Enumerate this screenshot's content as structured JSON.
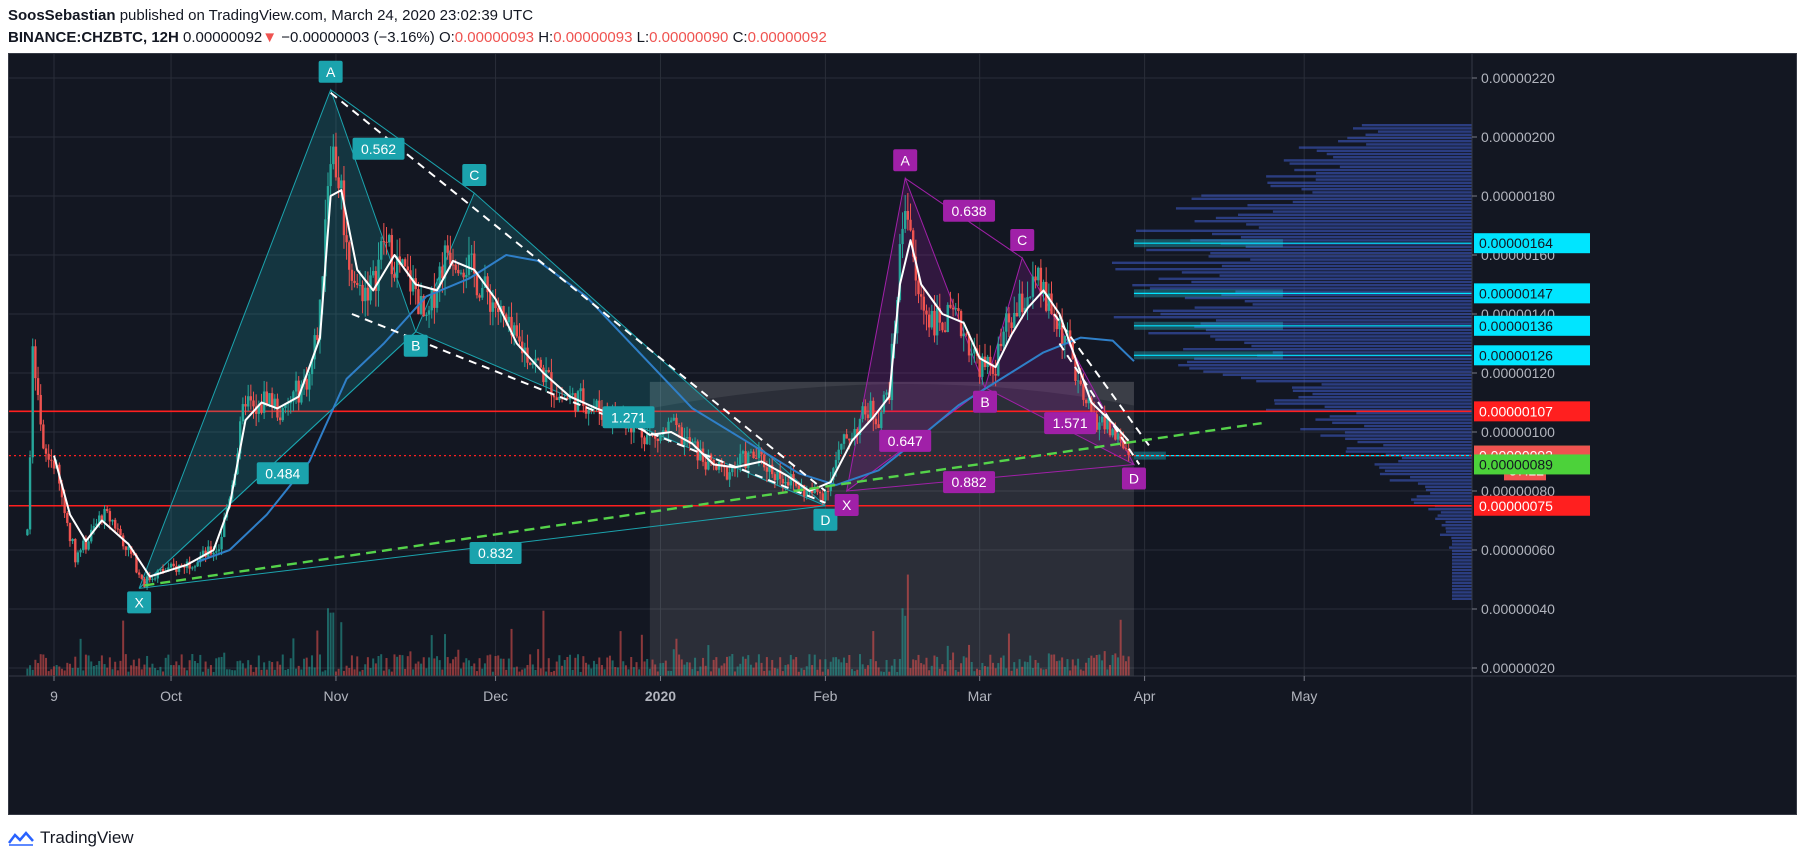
{
  "header": {
    "author": "SoosSebastian",
    "published": "published on TradingView.com, March 24, 2020 23:02:39 UTC",
    "symbol": "BINANCE:CHZBTC, 12H",
    "last": "0.00000092",
    "arrow": "▼",
    "change": "−0.00000003 (−3.16%)",
    "o_label": "O:",
    "o": "0.00000093",
    "h_label": "H:",
    "h": "0.00000093",
    "l_label": "L:",
    "l": "0.00000090",
    "c_label": "C:",
    "c": "0.00000092"
  },
  "footer": {
    "brand": "TradingView"
  },
  "colors": {
    "bg": "#131722",
    "grid": "#2a2e39",
    "up": "#26a69a",
    "down": "#ef5350",
    "teal": "#1ba3ad",
    "magenta": "#a020a8",
    "ma_fast": "#ffffff",
    "ma_slow": "#2f7fc8",
    "trend": "#55d34a",
    "support_red": "#ff1f1f",
    "profile": "#3f5ccd"
  },
  "chart_data": {
    "type": "candlestick",
    "x_ticks": [
      {
        "t": 0,
        "label": "9"
      },
      {
        "t": 22,
        "label": "Oct"
      },
      {
        "t": 53,
        "label": "Nov"
      },
      {
        "t": 83,
        "label": "Dec"
      },
      {
        "t": 114,
        "label": "2020"
      },
      {
        "t": 145,
        "label": "Feb"
      },
      {
        "t": 174,
        "label": "Mar"
      },
      {
        "t": 205,
        "label": "Apr"
      },
      {
        "t": 235,
        "label": "May"
      }
    ],
    "y_ticks": [
      "0.00000020",
      "0.00000040",
      "0.00000060",
      "0.00000080",
      "0.00000100",
      "0.00000120",
      "0.00000140",
      "0.00000160",
      "0.00000180",
      "0.00000200",
      "0.00000220"
    ],
    "ylim": [
      2e-07,
      2.29e-06
    ],
    "price_path": [
      [
        -5,
        6.5e-07
      ],
      [
        -4,
        1.25e-06
      ],
      [
        -2,
        9.2e-07
      ],
      [
        0,
        9e-07
      ],
      [
        2,
        7.3e-07
      ],
      [
        4,
        5.8e-07
      ],
      [
        6,
        6.2e-07
      ],
      [
        9,
        7.2e-07
      ],
      [
        11,
        7e-07
      ],
      [
        14,
        6e-07
      ],
      [
        17,
        4.9e-07
      ],
      [
        19,
        5.2e-07
      ],
      [
        23,
        5.4e-07
      ],
      [
        27,
        5.7e-07
      ],
      [
        31,
        6.1e-07
      ],
      [
        34,
        8.8e-07
      ],
      [
        36,
        1.12e-06
      ],
      [
        38,
        1.05e-06
      ],
      [
        40,
        1.13e-06
      ],
      [
        43,
        1.05e-06
      ],
      [
        45,
        1.12e-06
      ],
      [
        48,
        1.19e-06
      ],
      [
        50,
        1.4e-06
      ],
      [
        51,
        1.75e-06
      ],
      [
        52,
        1.98e-06
      ],
      [
        53,
        1.9e-06
      ],
      [
        54,
        1.82e-06
      ],
      [
        55,
        1.62e-06
      ],
      [
        57,
        1.48e-06
      ],
      [
        60,
        1.5e-06
      ],
      [
        62,
        1.65e-06
      ],
      [
        64,
        1.58e-06
      ],
      [
        66,
        1.53e-06
      ],
      [
        68,
        1.48e-06
      ],
      [
        70,
        1.35e-06
      ],
      [
        72,
        1.52e-06
      ],
      [
        74,
        1.62e-06
      ],
      [
        76,
        1.6e-06
      ],
      [
        78,
        1.56e-06
      ],
      [
        80,
        1.5e-06
      ],
      [
        83,
        1.43e-06
      ],
      [
        86,
        1.32e-06
      ],
      [
        89,
        1.27e-06
      ],
      [
        92,
        1.2e-06
      ],
      [
        95,
        1.12e-06
      ],
      [
        99,
        1.11e-06
      ],
      [
        103,
        1.07e-06
      ],
      [
        107,
        1.05e-06
      ],
      [
        110,
        1.01e-06
      ],
      [
        113,
        9.7e-07
      ],
      [
        116,
        1.02e-06
      ],
      [
        118,
        9.8e-07
      ],
      [
        120,
        9.5e-07
      ],
      [
        123,
        8.9e-07
      ],
      [
        126,
        8.6e-07
      ],
      [
        129,
        9e-07
      ],
      [
        132,
        9.2e-07
      ],
      [
        135,
        8.7e-07
      ],
      [
        138,
        8.4e-07
      ],
      [
        141,
        8e-07
      ],
      [
        143,
        7.9e-07
      ],
      [
        145,
        8e-07
      ],
      [
        147,
        9e-07
      ],
      [
        149,
        9.8e-07
      ],
      [
        151,
        1.02e-06
      ],
      [
        153,
        1.08e-06
      ],
      [
        155,
        1.05e-06
      ],
      [
        157,
        1.15e-06
      ],
      [
        158,
        1.35e-06
      ],
      [
        159,
        1.6e-06
      ],
      [
        160,
        1.8e-06
      ],
      [
        161,
        1.7e-06
      ],
      [
        162,
        1.48e-06
      ],
      [
        164,
        1.41e-06
      ],
      [
        166,
        1.37e-06
      ],
      [
        169,
        1.38e-06
      ],
      [
        171,
        1.35e-06
      ],
      [
        173,
        1.26e-06
      ],
      [
        175,
        1.21e-06
      ],
      [
        177,
        1.23e-06
      ],
      [
        179,
        1.35e-06
      ],
      [
        181,
        1.4e-06
      ],
      [
        183,
        1.47e-06
      ],
      [
        185,
        1.5e-06
      ],
      [
        187,
        1.42e-06
      ],
      [
        189,
        1.36e-06
      ],
      [
        191,
        1.28e-06
      ],
      [
        193,
        1.12e-06
      ],
      [
        195,
        1.06e-06
      ],
      [
        197,
        1.03e-06
      ],
      [
        199,
        1e-06
      ],
      [
        201,
        9.6e-07
      ],
      [
        202,
        9.2e-07
      ]
    ],
    "moving_average_fast": [
      [
        0,
        9.2e-07
      ],
      [
        3,
        7.2e-07
      ],
      [
        6,
        6.3e-07
      ],
      [
        9,
        7e-07
      ],
      [
        14,
        6.2e-07
      ],
      [
        18,
        5.1e-07
      ],
      [
        25,
        5.5e-07
      ],
      [
        30,
        6e-07
      ],
      [
        33,
        7.5e-07
      ],
      [
        36,
        1.04e-06
      ],
      [
        39,
        1.1e-06
      ],
      [
        42,
        1.08e-06
      ],
      [
        46,
        1.12e-06
      ],
      [
        50,
        1.32e-06
      ],
      [
        52,
        1.8e-06
      ],
      [
        54,
        1.82e-06
      ],
      [
        57,
        1.55e-06
      ],
      [
        60,
        1.48e-06
      ],
      [
        64,
        1.6e-06
      ],
      [
        68,
        1.5e-06
      ],
      [
        72,
        1.48e-06
      ],
      [
        75,
        1.58e-06
      ],
      [
        79,
        1.55e-06
      ],
      [
        83,
        1.45e-06
      ],
      [
        87,
        1.3e-06
      ],
      [
        92,
        1.2e-06
      ],
      [
        97,
        1.12e-06
      ],
      [
        102,
        1.08e-06
      ],
      [
        108,
        1.04e-06
      ],
      [
        112,
        9.9e-07
      ],
      [
        116,
        1e-06
      ],
      [
        120,
        9.6e-07
      ],
      [
        124,
        8.9e-07
      ],
      [
        128,
        8.8e-07
      ],
      [
        133,
        9e-07
      ],
      [
        138,
        8.5e-07
      ],
      [
        142,
        8e-07
      ],
      [
        146,
        8.3e-07
      ],
      [
        150,
        9.7e-07
      ],
      [
        154,
        1.05e-06
      ],
      [
        157,
        1.12e-06
      ],
      [
        159,
        1.5e-06
      ],
      [
        161,
        1.65e-06
      ],
      [
        163,
        1.5e-06
      ],
      [
        167,
        1.4e-06
      ],
      [
        171,
        1.37e-06
      ],
      [
        174,
        1.25e-06
      ],
      [
        177,
        1.22e-06
      ],
      [
        180,
        1.33e-06
      ],
      [
        183,
        1.42e-06
      ],
      [
        186,
        1.48e-06
      ],
      [
        189,
        1.4e-06
      ],
      [
        192,
        1.25e-06
      ],
      [
        195,
        1.1e-06
      ],
      [
        199,
        1.03e-06
      ],
      [
        202,
        9.7e-07
      ]
    ],
    "moving_average_slow": [
      [
        27,
        5.6e-07
      ],
      [
        33,
        6e-07
      ],
      [
        40,
        7.2e-07
      ],
      [
        48,
        9e-07
      ],
      [
        55,
        1.18e-06
      ],
      [
        62,
        1.3e-06
      ],
      [
        70,
        1.46e-06
      ],
      [
        78,
        1.52e-06
      ],
      [
        85,
        1.6e-06
      ],
      [
        91,
        1.58e-06
      ],
      [
        100,
        1.46e-06
      ],
      [
        110,
        1.27e-06
      ],
      [
        120,
        1.08e-06
      ],
      [
        130,
        9.7e-07
      ],
      [
        140,
        8.6e-07
      ],
      [
        147,
        8.2e-07
      ],
      [
        155,
        8.7e-07
      ],
      [
        162,
        9.7e-07
      ],
      [
        170,
        1.09e-06
      ],
      [
        178,
        1.18e-06
      ],
      [
        186,
        1.27e-06
      ],
      [
        193,
        1.32e-06
      ],
      [
        199,
        1.31e-06
      ],
      [
        203,
        1.24e-06
      ]
    ],
    "patterns": [
      {
        "name": "bearish pattern (teal)",
        "points": [
          {
            "label": "X",
            "t": 16,
            "p": 4.7e-07
          },
          {
            "label": "A",
            "t": 52,
            "p": 2.16e-06
          },
          {
            "label": "B",
            "t": 68,
            "p": 1.34e-06
          },
          {
            "label": "C",
            "t": 79,
            "p": 1.81e-06
          },
          {
            "label": "D",
            "t": 145,
            "p": 7.5e-07
          }
        ],
        "ratios": [
          {
            "text": "0.484",
            "t": 43,
            "p": 8.6e-07
          },
          {
            "text": "0.562",
            "t": 61,
            "p": 1.96e-06
          },
          {
            "text": "1.271",
            "t": 108,
            "p": 1.05e-06
          },
          {
            "text": "0.832",
            "t": 83,
            "p": 5.9e-07
          }
        ]
      },
      {
        "name": "pattern (magenta)",
        "points": [
          {
            "label": "X",
            "t": 149,
            "p": 8e-07
          },
          {
            "label": "A",
            "t": 160,
            "p": 1.86e-06
          },
          {
            "label": "B",
            "t": 175,
            "p": 1.15e-06
          },
          {
            "label": "C",
            "t": 182,
            "p": 1.59e-06
          },
          {
            "label": "D",
            "t": 203,
            "p": 8.9e-07
          }
        ],
        "ratios": [
          {
            "text": "0.638",
            "t": 172,
            "p": 1.75e-06
          },
          {
            "text": "0.647",
            "t": 160,
            "p": 9.7e-07
          },
          {
            "text": "1.571",
            "t": 191,
            "p": 1.03e-06
          },
          {
            "text": "0.882",
            "t": 172,
            "p": 8.3e-07
          }
        ]
      }
    ],
    "levels": [
      {
        "label": "0.00000164",
        "p": 1.64e-06,
        "bg": "#00e5ff",
        "fg": "#131722"
      },
      {
        "label": "0.00000147",
        "p": 1.47e-06,
        "bg": "#00e5ff",
        "fg": "#131722"
      },
      {
        "label": "0.00000136",
        "p": 1.36e-06,
        "bg": "#00e5ff",
        "fg": "#131722"
      },
      {
        "label": "0.00000126",
        "p": 1.26e-06,
        "bg": "#00e5ff",
        "fg": "#131722"
      },
      {
        "label": "0.00000107",
        "p": 1.07e-06,
        "bg": "#ff1f1f",
        "fg": "#ffffff"
      },
      {
        "label": "0.00000092",
        "p": 9.2e-07,
        "bg": "#4cd23a",
        "fg": "#131722"
      },
      {
        "label": "0.00000092",
        "p": 9.2e-07,
        "bg": "#ef5350",
        "fg": "#ffffff"
      },
      {
        "label": "57:22",
        "p": 8.7e-07,
        "bg": "#ef5350",
        "fg": "#ffffff"
      },
      {
        "label": "0.00000089",
        "p": 8.9e-07,
        "bg": "#4cd23a",
        "fg": "#131722"
      },
      {
        "label": "0.00000075",
        "p": 7.5e-07,
        "bg": "#ff1f1f",
        "fg": "#ffffff"
      }
    ],
    "horizontal_lines": [
      {
        "p": 1.07e-06,
        "color": "#ff1f1f",
        "style": "solid"
      },
      {
        "p": 9.2e-07,
        "color": "#ff1f1f",
        "style": "dotted"
      },
      {
        "p": 7.5e-07,
        "color": "#ff1f1f",
        "style": "solid"
      }
    ],
    "trendline": {
      "from": {
        "t": 17,
        "p": 4.8e-07
      },
      "to": {
        "t": 227,
        "p": 1.03e-06
      }
    },
    "dashed_channel_upper": {
      "from": {
        "t": 52,
        "p": 2.15e-06
      },
      "to": {
        "t": 145,
        "p": 8e-07
      }
    },
    "dashed_channel_lower": {
      "from": {
        "t": 56,
        "p": 1.4e-06
      },
      "to": {
        "t": 145,
        "p": 7.6e-07
      }
    },
    "dashed_channel2_upper": {
      "from": {
        "t": 188,
        "p": 1.4e-06
      },
      "to": {
        "t": 206,
        "p": 9.5e-07
      }
    },
    "dashed_channel2_lower": {
      "from": {
        "t": 189,
        "p": 1.3e-06
      },
      "to": {
        "t": 204,
        "p": 8.9e-07
      }
    },
    "zones": [
      {
        "p": 1.64e-06,
        "t0": 203,
        "t1": 231
      },
      {
        "p": 1.47e-06,
        "t0": 203,
        "t1": 231
      },
      {
        "p": 1.36e-06,
        "t0": 203,
        "t1": 231
      },
      {
        "p": 1.26e-06,
        "t0": 203,
        "t1": 231
      },
      {
        "p": 9.2e-07,
        "t0": 203,
        "t1": 209
      }
    ],
    "volume_profile_range": {
      "t0": 112,
      "t1": 203
    }
  }
}
